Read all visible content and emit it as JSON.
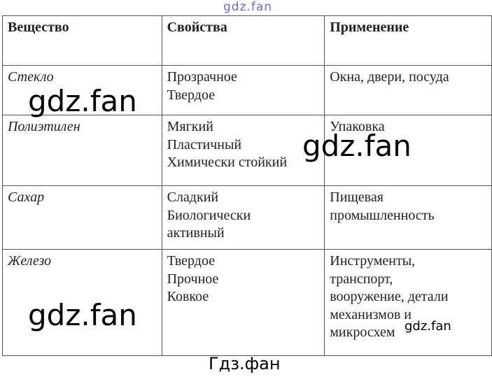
{
  "table": {
    "headers": [
      "Вещество",
      "Свойства",
      "Применение"
    ],
    "rows": [
      {
        "substance": "Стекло",
        "properties": [
          "Прозрачное",
          "Твердое"
        ],
        "usage": [
          "Окна, двери, посуда"
        ]
      },
      {
        "substance": "Полиэтилен",
        "properties": [
          "Мягкий",
          "Пластичный",
          "Химически стойкий"
        ],
        "usage": [
          "Упаковка"
        ]
      },
      {
        "substance": "Сахар",
        "properties": [
          "Сладкий",
          "Биологически",
          "активный"
        ],
        "usage": [
          "Пищевая",
          "промышленность"
        ]
      },
      {
        "substance": "Железо",
        "properties": [
          "Твердое",
          "Прочное",
          "Ковкое"
        ],
        "usage": [
          "Инструменты,",
          "транспорт,",
          "вооружение, детали",
          "механизмов и",
          "микросхем"
        ]
      }
    ]
  },
  "watermarks": {
    "top": "gdz.fan",
    "big1": "gdz.fan",
    "big2": "gdz.fan",
    "big3": "gdz.fan",
    "small": "gdz.fan",
    "bottom": "Гдз.фан"
  },
  "colors": {
    "top_watermark": "#6a6af0"
  }
}
